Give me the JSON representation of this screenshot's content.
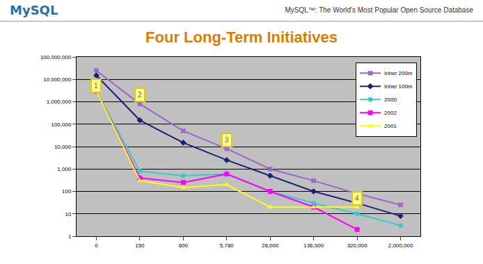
{
  "slide": {
    "logo": "MySQL",
    "header": "MySQL™: The World's Most Popular Open Source Database"
  },
  "chart_data": {
    "type": "line",
    "title": "Four Long-Term Initiatives",
    "categories": [
      "0",
      "150",
      "600",
      "5,780",
      "28,000",
      "136,000",
      "320,000",
      "2,000,000"
    ],
    "series": [
      {
        "name": "Inher 200m",
        "color": "#9966cc",
        "marker": "x",
        "values": [
          25000000,
          800000,
          50000,
          8000,
          1000,
          300,
          80,
          25
        ]
      },
      {
        "name": "Inher 100m",
        "color": "#1f1f7a",
        "marker": "diamond",
        "values": [
          15000000,
          150000,
          15000,
          2500,
          500,
          100,
          30,
          8
        ]
      },
      {
        "name": "2000",
        "color": "#33cccc",
        "marker": "circle",
        "values": [
          3000000,
          800,
          500,
          600,
          100,
          30,
          10,
          3
        ]
      },
      {
        "name": "2002",
        "color": "#ff00ff",
        "marker": "square",
        "values": [
          3000000,
          400,
          250,
          600,
          100,
          20,
          2,
          null
        ]
      },
      {
        "name": "2001",
        "color": "#ffff00",
        "marker": "triangle",
        "values": [
          3000000,
          300,
          150,
          200,
          20,
          20,
          20,
          null
        ]
      }
    ],
    "ylim": [
      1,
      100000000
    ],
    "yticks": [
      1,
      10,
      100,
      {
        "value": 1000,
        "label": "1,000"
      },
      {
        "value": 10000,
        "label": "10,000"
      },
      {
        "value": 100000,
        "label": "100,000"
      },
      {
        "value": 1000000,
        "label": "1,000,000"
      },
      {
        "value": 10000000,
        "label": "10,000,000"
      },
      {
        "value": 100000000,
        "label": "100,000,000"
      }
    ],
    "log": "y",
    "grid": true,
    "legend": "top right",
    "annotations": [
      {
        "text": "1",
        "x": "0",
        "y": 5000000
      },
      {
        "text": "2",
        "x": "150",
        "y": 2000000
      },
      {
        "text": "3",
        "x": "5,780",
        "y": 20000
      },
      {
        "text": "4",
        "x": "320,000",
        "y": 50
      }
    ]
  }
}
